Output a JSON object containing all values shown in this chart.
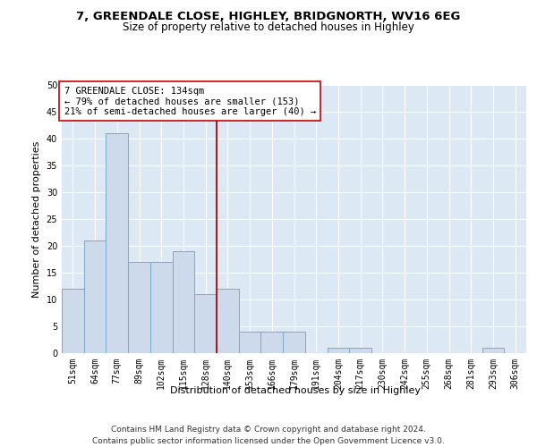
{
  "title1": "7, GREENDALE CLOSE, HIGHLEY, BRIDGNORTH, WV16 6EG",
  "title2": "Size of property relative to detached houses in Highley",
  "xlabel": "Distribution of detached houses by size in Highley",
  "ylabel": "Number of detached properties",
  "bar_labels": [
    "51sqm",
    "64sqm",
    "77sqm",
    "89sqm",
    "102sqm",
    "115sqm",
    "128sqm",
    "140sqm",
    "153sqm",
    "166sqm",
    "179sqm",
    "191sqm",
    "204sqm",
    "217sqm",
    "230sqm",
    "242sqm",
    "255sqm",
    "268sqm",
    "281sqm",
    "293sqm",
    "306sqm"
  ],
  "bar_values": [
    12,
    21,
    41,
    17,
    17,
    19,
    11,
    12,
    4,
    4,
    4,
    0,
    1,
    1,
    0,
    0,
    0,
    0,
    0,
    1,
    0
  ],
  "bar_color": "#ccdaeb",
  "bar_edgecolor": "#7aaac8",
  "background_color": "#dde8f5",
  "grid_color": "#ffffff",
  "vline_color": "#bb0000",
  "vline_x_index": 7,
  "annotation_text": "7 GREENDALE CLOSE: 134sqm\n← 79% of detached houses are smaller (153)\n21% of semi-detached houses are larger (40) →",
  "annotation_box_facecolor": "#ffffff",
  "annotation_box_edgecolor": "#cc0000",
  "ylim": [
    0,
    50
  ],
  "yticks": [
    0,
    5,
    10,
    15,
    20,
    25,
    30,
    35,
    40,
    45,
    50
  ],
  "title_fontsize": 9.5,
  "subtitle_fontsize": 8.5,
  "ylabel_fontsize": 8,
  "xlabel_fontsize": 8,
  "tick_fontsize": 7,
  "annotation_fontsize": 7.5,
  "footer_fontsize": 6.5,
  "footer_text": "Contains HM Land Registry data © Crown copyright and database right 2024.\nContains public sector information licensed under the Open Government Licence v3.0."
}
